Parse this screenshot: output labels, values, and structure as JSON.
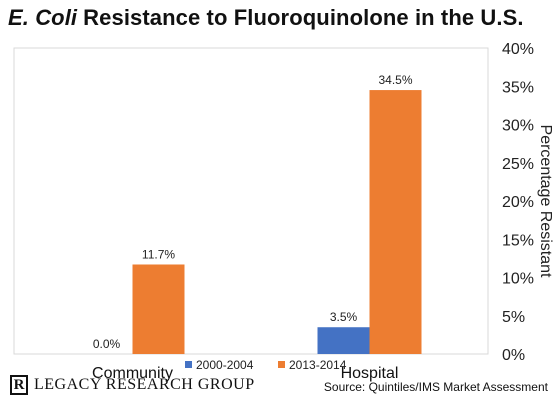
{
  "title": {
    "italic": "E. Coli",
    "rest": "Resistance to Fluoroquinolone in the U.S."
  },
  "chart_data": {
    "type": "bar",
    "categories": [
      "Community",
      "Hospital"
    ],
    "series": [
      {
        "name": "2000-2004",
        "color": "#4472C4",
        "values": [
          0.0,
          3.5
        ],
        "labels": [
          "0.0%",
          "3.5%"
        ]
      },
      {
        "name": "2013-2014",
        "color": "#ED7D31",
        "values": [
          11.7,
          34.5
        ],
        "labels": [
          "11.7%",
          "34.5%"
        ]
      }
    ],
    "ylabel": "Percentage Resistant",
    "ylim": [
      0,
      40
    ],
    "yticks": [
      0,
      5,
      10,
      15,
      20,
      25,
      30,
      35,
      40
    ],
    "ytick_labels": [
      "0%",
      "5%",
      "10%",
      "15%",
      "20%",
      "25%",
      "30%",
      "35%",
      "40%"
    ],
    "y_axis_side": "right",
    "grid": false,
    "legend": "bottom"
  },
  "footer": {
    "logo_letter": "R",
    "brand": "LEGACY RESEARCH GROUP",
    "source": "Source: Quintiles/IMS Market Assessment"
  }
}
